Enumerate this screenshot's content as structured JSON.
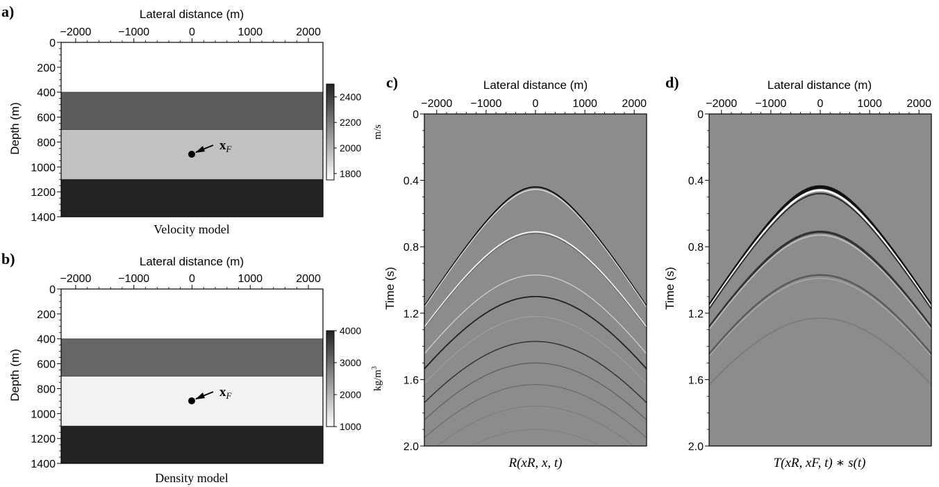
{
  "panels": {
    "a": {
      "letter": "a)",
      "xlabel": "Lateral distance (m)",
      "ylabel": "Depth (m)",
      "xticks": [
        "−2000",
        "−1000",
        "0",
        "1000",
        "2000"
      ],
      "yticks": [
        "0",
        "200",
        "400",
        "600",
        "800",
        "1000",
        "1200",
        "1400"
      ],
      "caption": "Velocity model",
      "marker_label": "x",
      "marker_sub": "F",
      "colorbar": {
        "unit": "m/s",
        "ticks": [
          "2400",
          "2200",
          "2000",
          "1800"
        ],
        "min": 1750,
        "max": 2500
      },
      "layers": [
        {
          "top": 0,
          "bottom": 400,
          "value": 1750,
          "color": "#ffffff"
        },
        {
          "top": 400,
          "bottom": 700,
          "value": 2300,
          "color": "#5c5c5c"
        },
        {
          "top": 700,
          "bottom": 1100,
          "value": 2000,
          "color": "#c1c1c1"
        },
        {
          "top": 1100,
          "bottom": 1400,
          "value": 2500,
          "color": "#222222"
        }
      ],
      "marker": {
        "x": 0,
        "depth": 900
      }
    },
    "b": {
      "letter": "b)",
      "xlabel": "Lateral distance (m)",
      "ylabel": "Depth (m)",
      "xticks": [
        "−2000",
        "−1000",
        "0",
        "1000",
        "2000"
      ],
      "yticks": [
        "0",
        "200",
        "400",
        "600",
        "800",
        "1000",
        "1200",
        "1400"
      ],
      "caption": "Density model",
      "marker_label": "x",
      "marker_sub": "F",
      "colorbar": {
        "unit_base": "kg/m",
        "unit_sup": "3",
        "ticks": [
          "4000",
          "3000",
          "2000",
          "1000"
        ],
        "min": 1000,
        "max": 4000
      },
      "layers": [
        {
          "top": 0,
          "bottom": 400,
          "value": 1000,
          "color": "#ffffff"
        },
        {
          "top": 400,
          "bottom": 700,
          "value": 3000,
          "color": "#666666"
        },
        {
          "top": 700,
          "bottom": 1100,
          "value": 1200,
          "color": "#f2f2f2"
        },
        {
          "top": 1100,
          "bottom": 1400,
          "value": 4000,
          "color": "#222222"
        }
      ],
      "marker": {
        "x": 0,
        "depth": 900
      }
    },
    "c": {
      "letter": "c)",
      "xlabel": "Lateral distance (m)",
      "ylabel": "Time (s)",
      "xticks": [
        "−2000",
        "−1000",
        "0",
        "1000",
        "2000"
      ],
      "yticks": [
        "0",
        "0.4",
        "0.8",
        "1.2",
        "1.6",
        "2.0"
      ],
      "caption": "R(xR, x, t)",
      "events": [
        {
          "t0": 0.44,
          "color": "#111111",
          "width": 2.0,
          "opacity": 1.0
        },
        {
          "t0": 0.455,
          "color": "#f5f5f5",
          "width": 1.2,
          "opacity": 0.9
        },
        {
          "t0": 0.71,
          "color": "#f8f8f8",
          "width": 1.8,
          "opacity": 1.0
        },
        {
          "t0": 0.72,
          "color": "#444444",
          "width": 0.8,
          "opacity": 0.8
        },
        {
          "t0": 0.97,
          "color": "#dddddd",
          "width": 1.2,
          "opacity": 0.9
        },
        {
          "t0": 1.1,
          "color": "#222222",
          "width": 1.8,
          "opacity": 1.0
        },
        {
          "t0": 1.22,
          "color": "#aaaaaa",
          "width": 1.0,
          "opacity": 0.8
        },
        {
          "t0": 1.37,
          "color": "#333333",
          "width": 1.5,
          "opacity": 1.0
        },
        {
          "t0": 1.5,
          "color": "#555555",
          "width": 1.2,
          "opacity": 0.9
        },
        {
          "t0": 1.63,
          "color": "#666666",
          "width": 1.2,
          "opacity": 0.9
        },
        {
          "t0": 1.76,
          "color": "#777777",
          "width": 1.0,
          "opacity": 0.8
        },
        {
          "t0": 1.9,
          "color": "#7a7a7a",
          "width": 1.0,
          "opacity": 0.8
        }
      ]
    },
    "d": {
      "letter": "d)",
      "xlabel": "Lateral distance (m)",
      "ylabel": "Time (s)",
      "xticks": [
        "−2000",
        "−1000",
        "0",
        "1000",
        "2000"
      ],
      "yticks": [
        "0",
        "0.4",
        "0.8",
        "1.2",
        "1.6",
        "2.0"
      ],
      "caption": "T(xR, xF, t) ∗ s(t)",
      "events": [
        {
          "t0": 0.44,
          "color": "#111111",
          "width": 5.0,
          "opacity": 1.0
        },
        {
          "t0": 0.46,
          "color": "#fafafa",
          "width": 3.0,
          "opacity": 1.0
        },
        {
          "t0": 0.48,
          "color": "#222222",
          "width": 2.0,
          "opacity": 0.9
        },
        {
          "t0": 0.71,
          "color": "#333333",
          "width": 3.5,
          "opacity": 1.0
        },
        {
          "t0": 0.73,
          "color": "#c0c0c0",
          "width": 2.0,
          "opacity": 0.9
        },
        {
          "t0": 0.97,
          "color": "#5a5a5a",
          "width": 2.5,
          "opacity": 1.0
        },
        {
          "t0": 0.99,
          "color": "#b0b0b0",
          "width": 1.5,
          "opacity": 0.8
        },
        {
          "t0": 1.23,
          "color": "#7a7a7a",
          "width": 2.0,
          "opacity": 0.9
        }
      ]
    }
  },
  "colors": {
    "seismic_background": "#8c8c8c",
    "axis": "#000000"
  }
}
